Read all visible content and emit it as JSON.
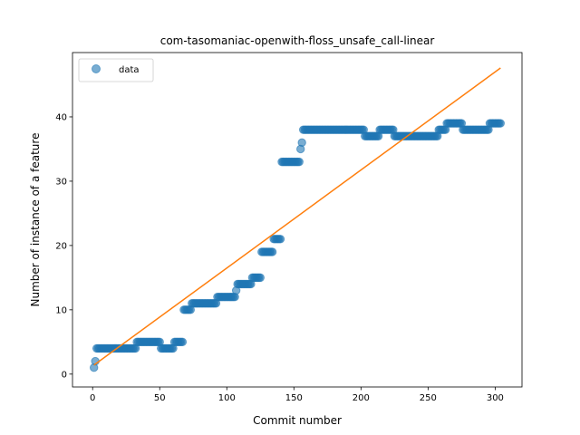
{
  "chart_data": {
    "type": "scatter",
    "title": "com-tasomaniac-openwith-floss_unsafe_call-linear",
    "xlabel": "Commit number",
    "ylabel": "Number of instance of a feature",
    "xlim": [
      -15,
      320
    ],
    "ylim": [
      -2,
      50
    ],
    "xticks": [
      0,
      50,
      100,
      150,
      200,
      250,
      300
    ],
    "yticks": [
      0,
      10,
      20,
      30,
      40
    ],
    "grid": false,
    "legend": {
      "placement": "top-left",
      "entries": [
        "data"
      ]
    },
    "colors": {
      "data": "#1f77b4",
      "fit": "#ff7f0e"
    },
    "series": [
      {
        "name": "data",
        "style": "markers",
        "segments": [
          {
            "x_start": 1,
            "x_end": 1,
            "y": 1
          },
          {
            "x_start": 2,
            "x_end": 2,
            "y": 2
          },
          {
            "x_start": 3,
            "x_end": 32,
            "y": 4
          },
          {
            "x_start": 33,
            "x_end": 50,
            "y": 5
          },
          {
            "x_start": 51,
            "x_end": 60,
            "y": 4
          },
          {
            "x_start": 61,
            "x_end": 67,
            "y": 5
          },
          {
            "x_start": 68,
            "x_end": 73,
            "y": 10
          },
          {
            "x_start": 74,
            "x_end": 92,
            "y": 11
          },
          {
            "x_start": 93,
            "x_end": 106,
            "y": 12
          },
          {
            "x_start": 107,
            "x_end": 107,
            "y": 13
          },
          {
            "x_start": 108,
            "x_end": 118,
            "y": 14
          },
          {
            "x_start": 119,
            "x_end": 125,
            "y": 15
          },
          {
            "x_start": 126,
            "x_end": 134,
            "y": 19
          },
          {
            "x_start": 135,
            "x_end": 140,
            "y": 21
          },
          {
            "x_start": 141,
            "x_end": 154,
            "y": 33
          },
          {
            "x_start": 155,
            "x_end": 155,
            "y": 35
          },
          {
            "x_start": 156,
            "x_end": 156,
            "y": 36
          },
          {
            "x_start": 157,
            "x_end": 202,
            "y": 38
          },
          {
            "x_start": 203,
            "x_end": 213,
            "y": 37
          },
          {
            "x_start": 214,
            "x_end": 224,
            "y": 38
          },
          {
            "x_start": 225,
            "x_end": 257,
            "y": 37
          },
          {
            "x_start": 258,
            "x_end": 263,
            "y": 38
          },
          {
            "x_start": 264,
            "x_end": 275,
            "y": 39
          },
          {
            "x_start": 276,
            "x_end": 295,
            "y": 38
          },
          {
            "x_start": 296,
            "x_end": 304,
            "y": 39
          }
        ]
      },
      {
        "name": "",
        "style": "line",
        "x": [
          1,
          304
        ],
        "y": [
          1.4,
          47.6
        ]
      }
    ]
  }
}
